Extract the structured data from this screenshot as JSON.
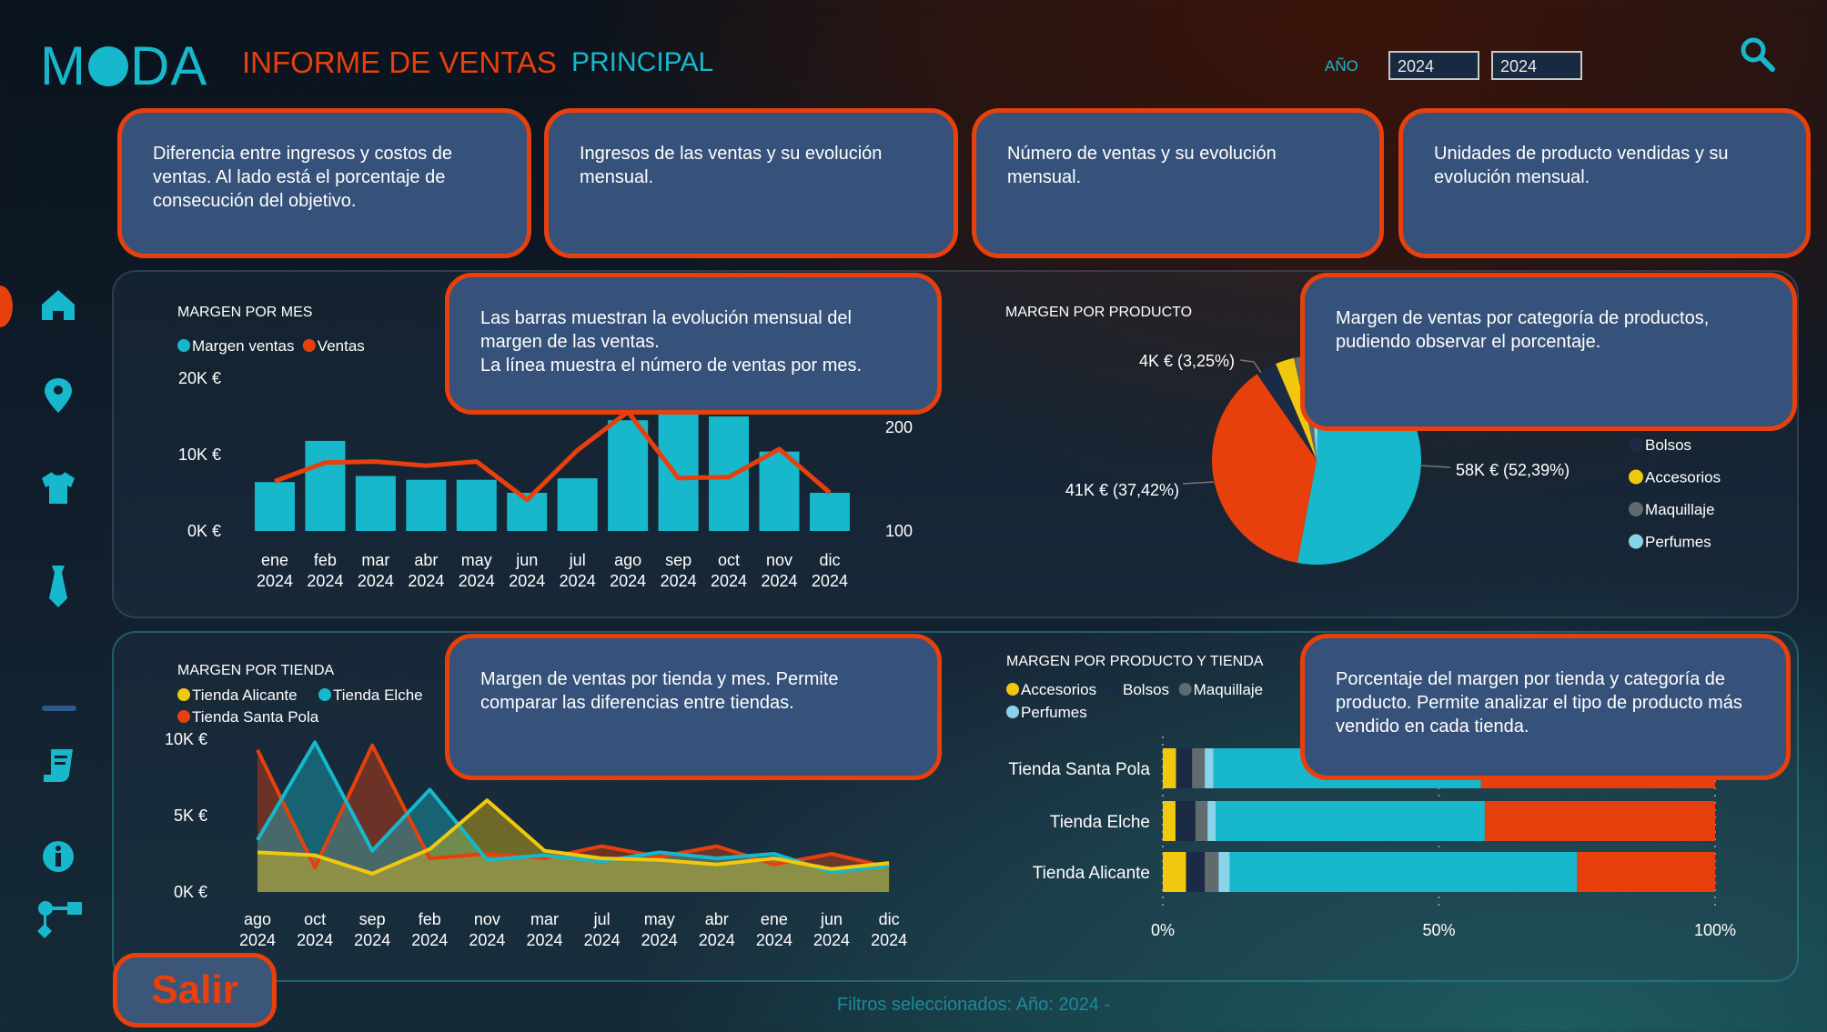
{
  "header": {
    "logo": "MODA",
    "title": "INFORME DE VENTAS",
    "subtitle": "PRINCIPAL",
    "year_label": "AÑO",
    "year_from": "2024",
    "year_to": "2024",
    "search_icon": "search-icon"
  },
  "sidebar": {
    "items": [
      {
        "icon": "home-icon",
        "active": true
      },
      {
        "icon": "map-pin-icon"
      },
      {
        "icon": "shirt-icon"
      },
      {
        "icon": "tie-icon"
      },
      {
        "icon": "divider"
      },
      {
        "icon": "scroll-icon"
      },
      {
        "icon": "info-icon"
      },
      {
        "icon": "flowchart-icon"
      }
    ]
  },
  "tooltips": {
    "kpi1": "Diferencia entre ingresos y costos de ventas. Al lado está el porcentaje de consecución del objetivo.",
    "kpi2": "Ingresos de las ventas y su evolución mensual.",
    "kpi3": "Número de ventas y su evolución mensual.",
    "kpi4": "Unidades de producto vendidas y su evolución mensual.",
    "margen_mes": "Las barras muestran la evolución mensual del margen de las ventas.\nLa línea muestra el número de ventas por mes.",
    "margen_producto": "Margen de ventas por categoría de productos, pudiendo observar el porcentaje.",
    "margen_tienda": "Margen de ventas por tienda y mes. Permite comparar las diferencias entre tiendas.",
    "margen_producto_tienda": "Porcentaje del margen por tienda y categoría de producto. Permite analizar el tipo de producto más vendido en cada tienda."
  },
  "footer": {
    "exit_label": "Salir",
    "filters_text": "Filtros seleccionados: Año: 2024 -"
  },
  "colors": {
    "accent_cyan": "#17b8cc",
    "accent_orange": "#e8400c",
    "yellow": "#f2c80f",
    "navy": "#1b2a45",
    "gray": "#5f6b6d",
    "light_blue": "#8ad4eb"
  },
  "chart_data": [
    {
      "type": "bar",
      "title": "MARGEN POR MES",
      "categories": [
        "ene 2024",
        "feb 2024",
        "mar 2024",
        "abr 2024",
        "may 2024",
        "jun 2024",
        "jul 2024",
        "ago 2024",
        "sep 2024",
        "oct 2024",
        "nov 2024",
        "dic 2024"
      ],
      "series": [
        {
          "name": "Margen ventas",
          "type": "bar",
          "axis": "left",
          "color": "#17b8cc",
          "values": [
            6.4,
            11.8,
            7.2,
            6.7,
            6.7,
            5.0,
            6.9,
            14.5,
            16,
            15,
            10.4,
            5.0
          ]
        },
        {
          "name": "Ventas",
          "type": "line",
          "axis": "right",
          "color": "#e8400c",
          "values": [
            148,
            166,
            167,
            163,
            167,
            130,
            178,
            215,
            151,
            152,
            179,
            137
          ]
        }
      ],
      "yticks_left": [
        "0K €",
        "10K €",
        "20K €"
      ],
      "yticks_right": [
        "100",
        "200"
      ],
      "ylim_left": [
        0,
        20
      ],
      "ylim_right_ref": [
        100,
        200
      ],
      "legend": "top-left"
    },
    {
      "type": "pie",
      "title": "MARGEN POR PRODUCTO",
      "slices": [
        {
          "value": 52.39,
          "color": "#17b8cc",
          "label": "58K € (52,39%)"
        },
        {
          "value": 37.42,
          "color": "#e8400c",
          "label": "41K € (37,42%)"
        },
        {
          "name": "Bolsos",
          "value": 3.25,
          "color": "#1b2a45",
          "label": "4K € (3,25%)"
        },
        {
          "name": "Accesorios",
          "value": 2.9,
          "color": "#f2c80f"
        },
        {
          "name": "Maquillaje",
          "value": 2.2,
          "color": "#5f6b6d"
        },
        {
          "name": "Perfumes",
          "value": 1.84,
          "color": "#8ad4eb"
        }
      ],
      "legend": "right"
    },
    {
      "type": "area",
      "title": "MARGEN POR TIENDA",
      "categories": [
        "ago 2024",
        "oct 2024",
        "sep 2024",
        "feb 2024",
        "nov 2024",
        "mar 2024",
        "jul 2024",
        "may 2024",
        "abr 2024",
        "ene 2024",
        "jun 2024",
        "dic 2024"
      ],
      "series": [
        {
          "name": "Tienda Alicante",
          "color": "#f2c80f",
          "values": [
            2.6,
            2.4,
            1.2,
            2.8,
            6.0,
            2.7,
            2.2,
            2.1,
            1.8,
            2.2,
            1.5,
            1.9
          ]
        },
        {
          "name": "Tienda Elche",
          "color": "#17b8cc",
          "values": [
            3.4,
            9.8,
            2.7,
            6.7,
            2.1,
            2.4,
            2.0,
            2.6,
            2.2,
            2.5,
            1.3,
            1.7
          ]
        },
        {
          "name": "Tienda Santa Pola",
          "color": "#e8400c",
          "values": [
            9.3,
            1.6,
            9.6,
            2.2,
            2.5,
            2.2,
            3.0,
            2.3,
            3.0,
            1.8,
            2.5,
            1.6
          ]
        }
      ],
      "yticks": [
        "0K €",
        "5K €",
        "10K €"
      ],
      "ylim": [
        0,
        10
      ],
      "legend": "top-left"
    },
    {
      "type": "bar",
      "orientation": "horizontal-stacked-100",
      "title": "MARGEN POR PRODUCTO Y TIENDA",
      "categories": [
        "Tienda Santa Pola",
        "Tienda Elche",
        "Tienda Alicante"
      ],
      "series": [
        {
          "name": "Accesorios",
          "color": "#f2c80f",
          "values": [
            2.4,
            2.3,
            4.2
          ]
        },
        {
          "name": "Bolsos",
          "color": "#1b2a45",
          "values": [
            2.9,
            3.6,
            3.4
          ]
        },
        {
          "name": "Maquillaje",
          "color": "#5f6b6d",
          "values": [
            2.3,
            2.2,
            2.5
          ]
        },
        {
          "name": "Perfumes",
          "color": "#8ad4eb",
          "values": [
            1.6,
            1.5,
            2.0
          ]
        },
        {
          "color": "#17b8cc",
          "values": [
            48.4,
            48.7,
            62.9
          ]
        },
        {
          "color": "#e8400c",
          "values": [
            42.4,
            41.7,
            25.0
          ]
        }
      ],
      "xticks": [
        "0%",
        "50%",
        "100%"
      ],
      "xlim": [
        0,
        100
      ],
      "legend": "top-left"
    }
  ]
}
